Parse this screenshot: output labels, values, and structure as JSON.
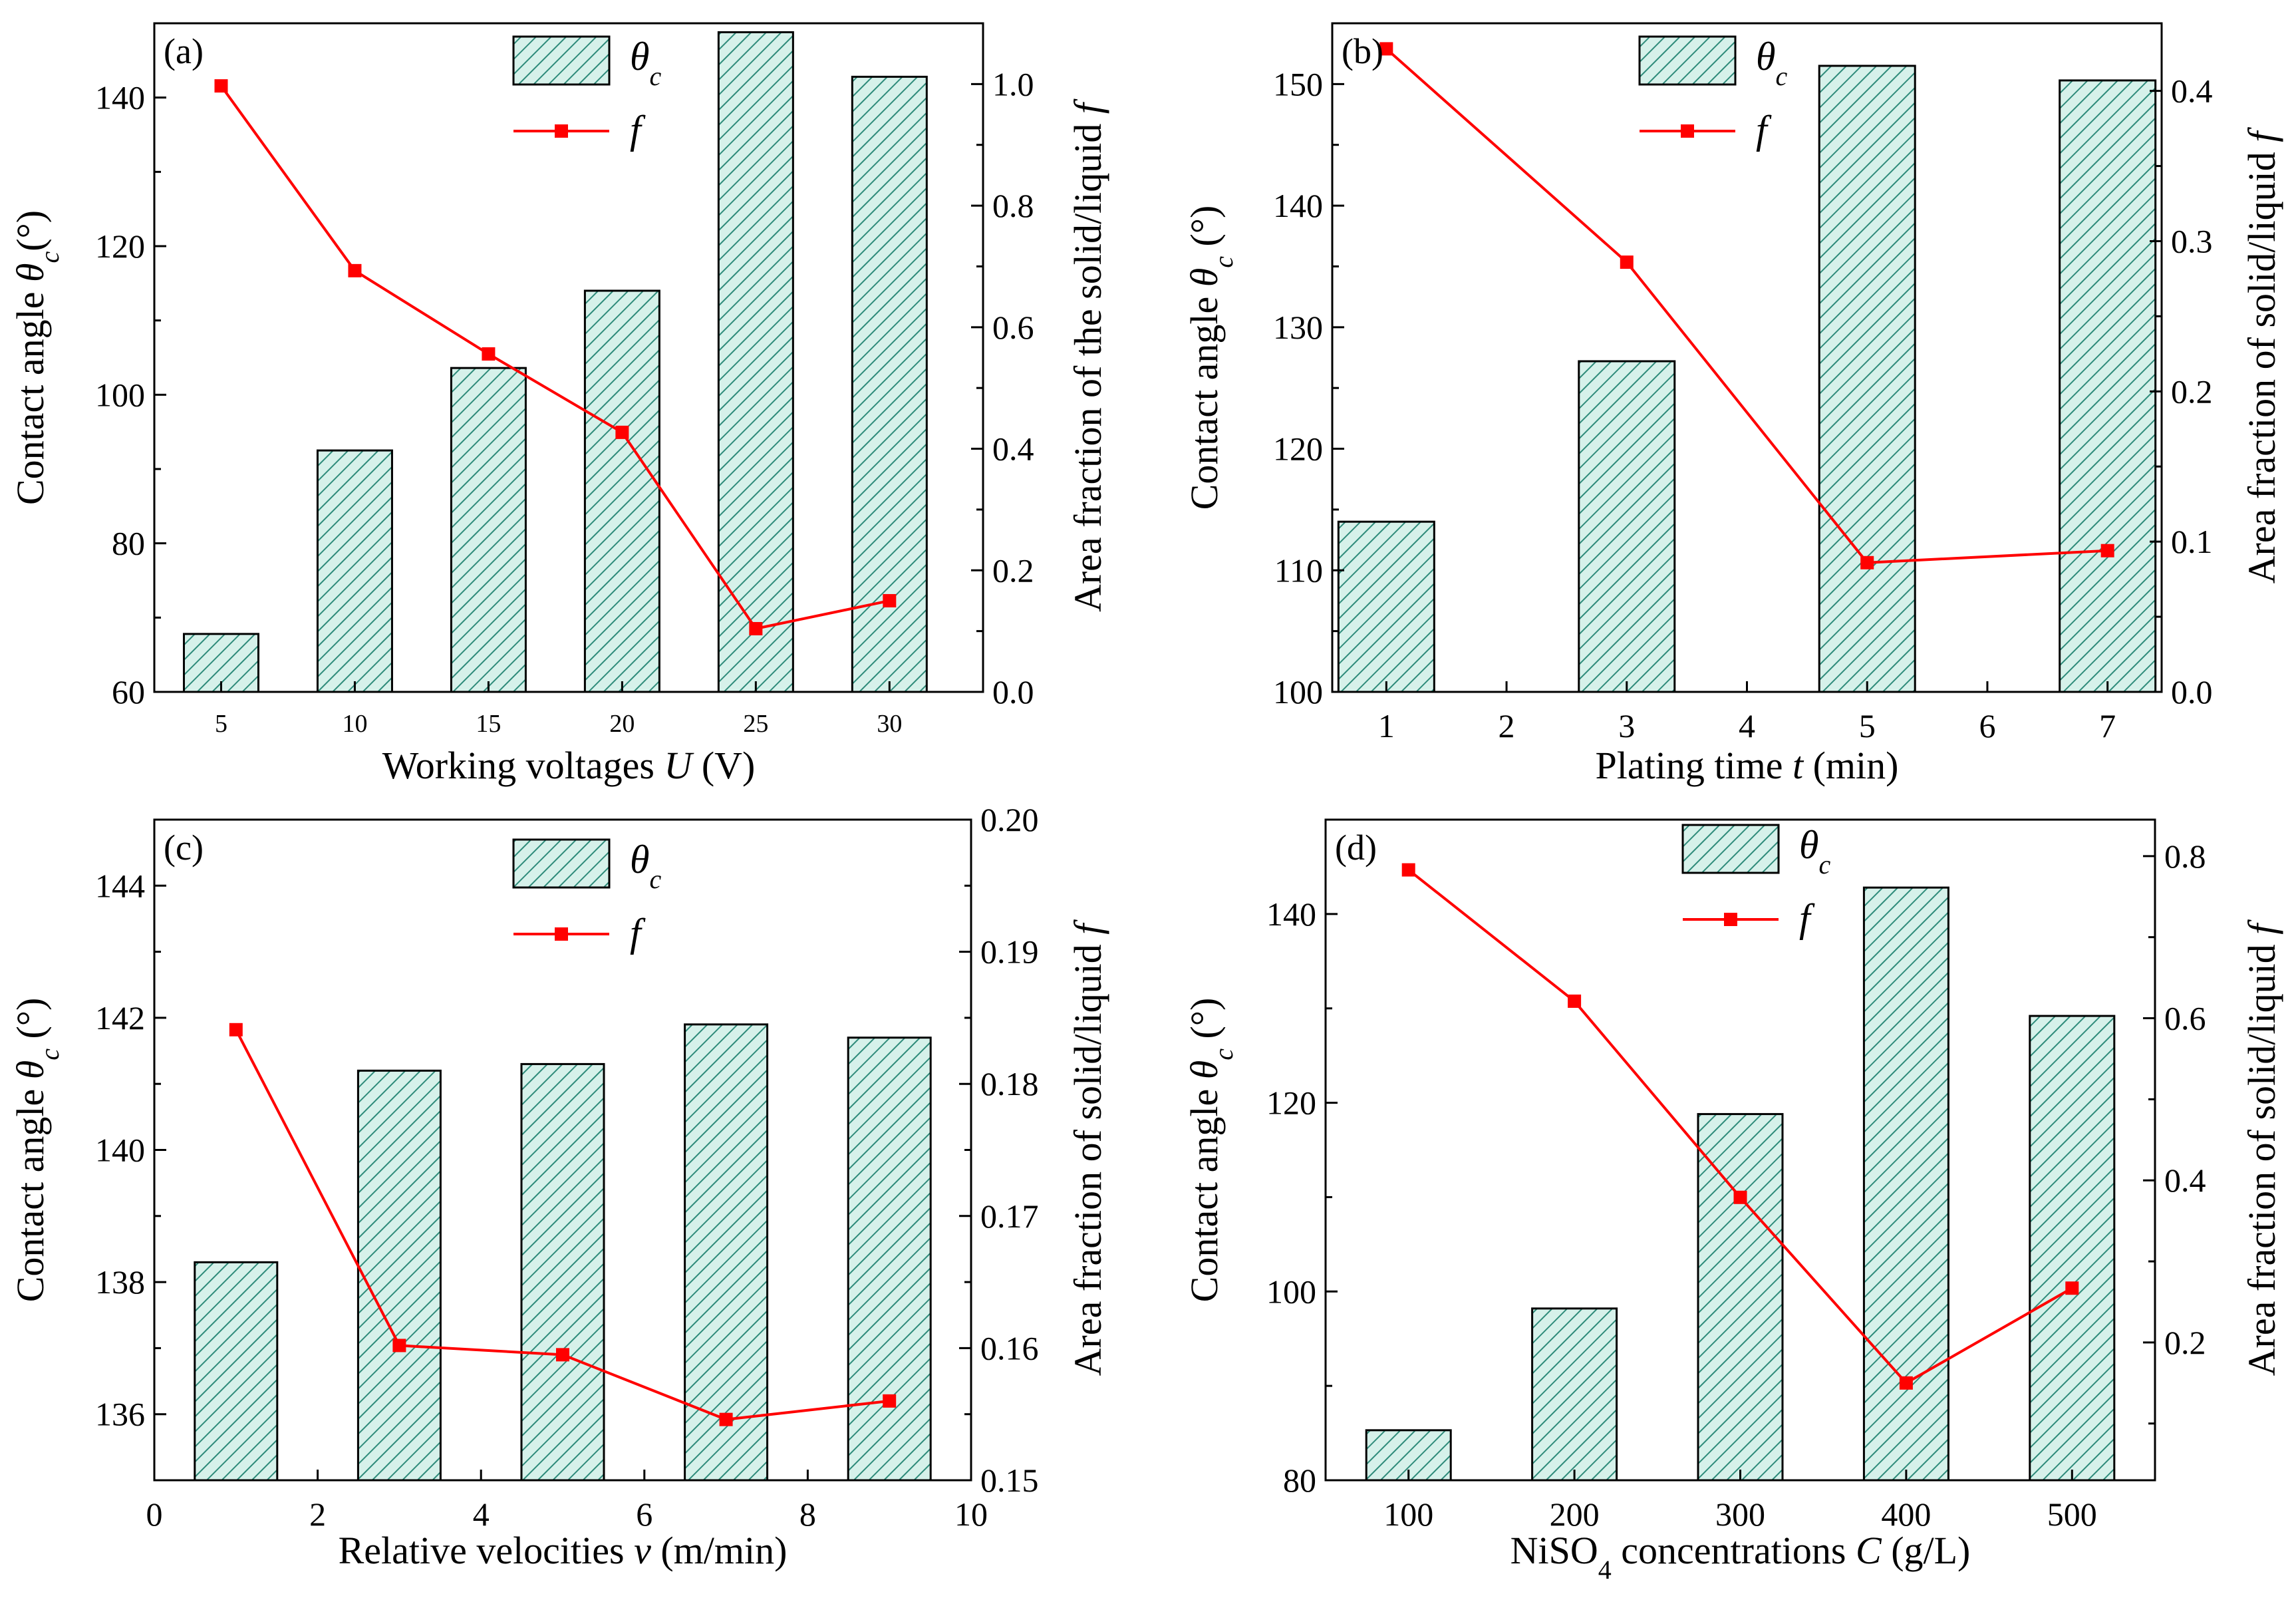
{
  "chart_data": [
    {
      "type": "bar+line",
      "panel_label": "(a)",
      "categories": [
        "5",
        "10",
        "15",
        "20",
        "25",
        "30"
      ],
      "x": [
        5,
        10,
        15,
        20,
        25,
        30
      ],
      "xlabel": "Working voltages ",
      "xlabel_var": "U",
      "xlabel_unit": " (V)",
      "ylabel": "Contact angle ",
      "ylabel_unit": "(°)",
      "y2label": "Area fraction of the solid/liquid ",
      "ylim": [
        60,
        150
      ],
      "yticks": [
        60,
        80,
        100,
        120,
        140
      ],
      "y2lim": [
        0.0,
        1.1
      ],
      "y2ticks": [
        "0.0",
        "0.2",
        "0.4",
        "0.6",
        "0.8",
        "1.0"
      ],
      "series": [
        {
          "name": "θc",
          "axis": "left",
          "kind": "bar",
          "values": [
            67.8,
            92.5,
            103.6,
            114.0,
            148.8,
            142.8
          ]
        },
        {
          "name": "f",
          "axis": "right",
          "kind": "line",
          "values": [
            0.997,
            0.693,
            0.556,
            0.427,
            0.104,
            0.15
          ]
        }
      ],
      "legend": [
        "θc",
        "f"
      ],
      "legend_position": "top-center"
    },
    {
      "type": "bar+line",
      "panel_label": "(b)",
      "x": [
        1,
        3,
        5,
        7
      ],
      "xticks": [
        "1",
        "2",
        "3",
        "4",
        "5",
        "6",
        "7"
      ],
      "xlabel": "Plating time ",
      "xlabel_var": "t",
      "xlabel_unit": " (min)",
      "ylabel": "Contact angle ",
      "ylabel_unit": " (°)",
      "y2label": "Area fraction of solid/liquid ",
      "ylim": [
        100,
        155
      ],
      "yticks": [
        100,
        110,
        120,
        130,
        140,
        150
      ],
      "y2lim": [
        0.0,
        0.445
      ],
      "y2ticks": [
        "0.0",
        "0.1",
        "0.2",
        "0.3",
        "0.4"
      ],
      "series": [
        {
          "name": "θc",
          "axis": "left",
          "kind": "bar",
          "values": [
            114.0,
            127.2,
            151.5,
            150.3
          ]
        },
        {
          "name": "f",
          "axis": "right",
          "kind": "line",
          "values": [
            0.428,
            0.286,
            0.086,
            0.094
          ]
        }
      ],
      "legend": [
        "θc",
        "f"
      ],
      "legend_position": "top-center"
    },
    {
      "type": "bar+line",
      "panel_label": "(c)",
      "x": [
        1,
        3,
        5,
        7,
        9
      ],
      "xticks": [
        "0",
        "2",
        "4",
        "6",
        "8",
        "10"
      ],
      "xlabel": "Relative velocities ",
      "xlabel_var": "v",
      "xlabel_unit": " (m/min)",
      "ylabel": "Contact angle ",
      "ylabel_unit": " (°)",
      "y2label": "Area fraction of solid/liquid ",
      "ylim": [
        135,
        145
      ],
      "yticks": [
        136,
        138,
        140,
        142,
        144
      ],
      "y2lim": [
        0.15,
        0.2
      ],
      "y2ticks": [
        "0.15",
        "0.16",
        "0.17",
        "0.18",
        "0.19",
        "0.20"
      ],
      "series": [
        {
          "name": "θc",
          "axis": "left",
          "kind": "bar",
          "values": [
            138.3,
            141.2,
            141.3,
            141.9,
            141.7
          ]
        },
        {
          "name": "f",
          "axis": "right",
          "kind": "line",
          "values": [
            0.1841,
            0.1602,
            0.1595,
            0.1546,
            0.156
          ]
        }
      ],
      "legend": [
        "θc",
        "f"
      ],
      "legend_position": "top-center"
    },
    {
      "type": "bar+line",
      "panel_label": "(d)",
      "x": [
        100,
        200,
        300,
        400,
        500
      ],
      "xticks": [
        "100",
        "200",
        "300",
        "400",
        "500"
      ],
      "xlabel": "NiSO",
      "xlabel_sub": "4",
      "xlabel_rest": " concentrations ",
      "xlabel_var": "C",
      "xlabel_unit": " (g/L)",
      "ylabel": "Contact angle ",
      "ylabel_unit": " (°)",
      "y2label": "Area fraction of solid/liquid ",
      "ylim": [
        80,
        150
      ],
      "yticks": [
        80,
        100,
        120,
        140
      ],
      "y2lim": [
        0.03,
        0.845
      ],
      "y2ticks": [
        "0.2",
        "0.4",
        "0.6",
        "0.8"
      ],
      "series": [
        {
          "name": "θc",
          "axis": "left",
          "kind": "bar",
          "values": [
            85.3,
            98.2,
            118.8,
            142.8,
            129.2
          ]
        },
        {
          "name": "f",
          "axis": "right",
          "kind": "line",
          "values": [
            0.783,
            0.621,
            0.379,
            0.15,
            0.267
          ]
        }
      ],
      "legend": [
        "θc",
        "f"
      ],
      "legend_position": "top-center"
    }
  ],
  "legend_labels": {
    "theta": "θ",
    "theta_sub": "c",
    "f": "f"
  },
  "colors": {
    "bar_fill": "#d6f1ea",
    "hatch": "#2e8b7a",
    "line": "#ff0000",
    "axis": "#000000"
  }
}
